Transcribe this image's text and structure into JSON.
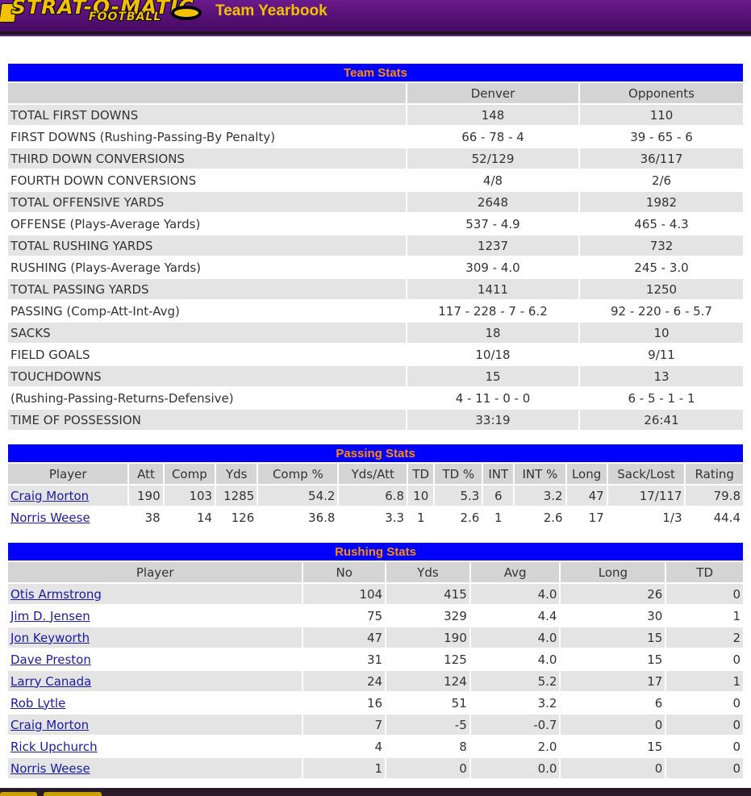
{
  "brand": {
    "logo_text": "STRAT-O-MATIC",
    "logo_sub": "FOOTBALL"
  },
  "page_title": "Team Yearbook",
  "colors": {
    "header_purple": "#5a1078",
    "brand_yellow": "#f2c200",
    "table_title_bg": "#0000ff",
    "table_title_text": "#ff8c00",
    "link": "#1a1aa6"
  },
  "team_stats": {
    "title": "Team Stats",
    "columns": [
      "",
      "Denver",
      "Opponents"
    ],
    "rows": [
      {
        "label": "TOTAL FIRST DOWNS",
        "team": "148",
        "opp": "110"
      },
      {
        "label": "FIRST DOWNS (Rushing-Passing-By Penalty)",
        "team": "66 - 78 - 4",
        "opp": "39 - 65 - 6"
      },
      {
        "label": "THIRD DOWN CONVERSIONS",
        "team": "52/129",
        "opp": "36/117"
      },
      {
        "label": "FOURTH DOWN CONVERSIONS",
        "team": "4/8",
        "opp": "2/6"
      },
      {
        "label": "TOTAL OFFENSIVE YARDS",
        "team": "2648",
        "opp": "1982"
      },
      {
        "label": "OFFENSE (Plays-Average Yards)",
        "team": "537 - 4.9",
        "opp": "465 - 4.3"
      },
      {
        "label": "TOTAL RUSHING YARDS",
        "team": "1237",
        "opp": "732"
      },
      {
        "label": "RUSHING (Plays-Average Yards)",
        "team": "309 - 4.0",
        "opp": "245 - 3.0"
      },
      {
        "label": "TOTAL PASSING YARDS",
        "team": "1411",
        "opp": "1250"
      },
      {
        "label": "PASSING (Comp-Att-Int-Avg)",
        "team": "117 - 228 - 7 - 6.2",
        "opp": "92 - 220 - 6 - 5.7"
      },
      {
        "label": "SACKS",
        "team": "18",
        "opp": "10"
      },
      {
        "label": "FIELD GOALS",
        "team": "10/18",
        "opp": "9/11"
      },
      {
        "label": "TOUCHDOWNS",
        "team": "15",
        "opp": "13"
      },
      {
        "label": "(Rushing-Passing-Returns-Defensive)",
        "team": "4 - 11 - 0 - 0",
        "opp": "6 - 5 - 1 - 1"
      },
      {
        "label": "TIME OF POSSESSION",
        "team": "33:19",
        "opp": "26:41"
      }
    ]
  },
  "passing_stats": {
    "title": "Passing Stats",
    "columns": [
      "Player",
      "Att",
      "Comp",
      "Yds",
      "Comp %",
      "Yds/Att",
      "TD",
      "TD %",
      "INT",
      "INT %",
      "Long",
      "Sack/Lost",
      "Rating"
    ],
    "rows": [
      [
        "Craig Morton",
        "190",
        "103",
        "1285",
        "54.2",
        "6.8",
        "10",
        "5.3",
        "6",
        "3.2",
        "47",
        "17/117",
        "79.8"
      ],
      [
        "Norris Weese",
        "38",
        "14",
        "126",
        "36.8",
        "3.3",
        "1",
        "2.6",
        "1",
        "2.6",
        "17",
        "1/3",
        "44.4"
      ]
    ]
  },
  "rushing_stats": {
    "title": "Rushing Stats",
    "columns": [
      "Player",
      "No",
      "Yds",
      "Avg",
      "Long",
      "TD"
    ],
    "rows": [
      [
        "Otis Armstrong",
        "104",
        "415",
        "4.0",
        "26",
        "0"
      ],
      [
        "Jim D. Jensen",
        "75",
        "329",
        "4.4",
        "30",
        "1"
      ],
      [
        "Jon Keyworth",
        "47",
        "190",
        "4.0",
        "15",
        "2"
      ],
      [
        "Dave Preston",
        "31",
        "125",
        "4.0",
        "15",
        "0"
      ],
      [
        "Larry Canada",
        "24",
        "124",
        "5.2",
        "17",
        "1"
      ],
      [
        "Rob Lytle",
        "16",
        "51",
        "3.2",
        "6",
        "0"
      ],
      [
        "Craig Morton",
        "7",
        "-5",
        "-0.7",
        "0",
        "0"
      ],
      [
        "Rick Upchurch",
        "4",
        "8",
        "2.0",
        "15",
        "0"
      ],
      [
        "Norris Weese",
        "1",
        "0",
        "0.0",
        "0",
        "0"
      ]
    ]
  }
}
